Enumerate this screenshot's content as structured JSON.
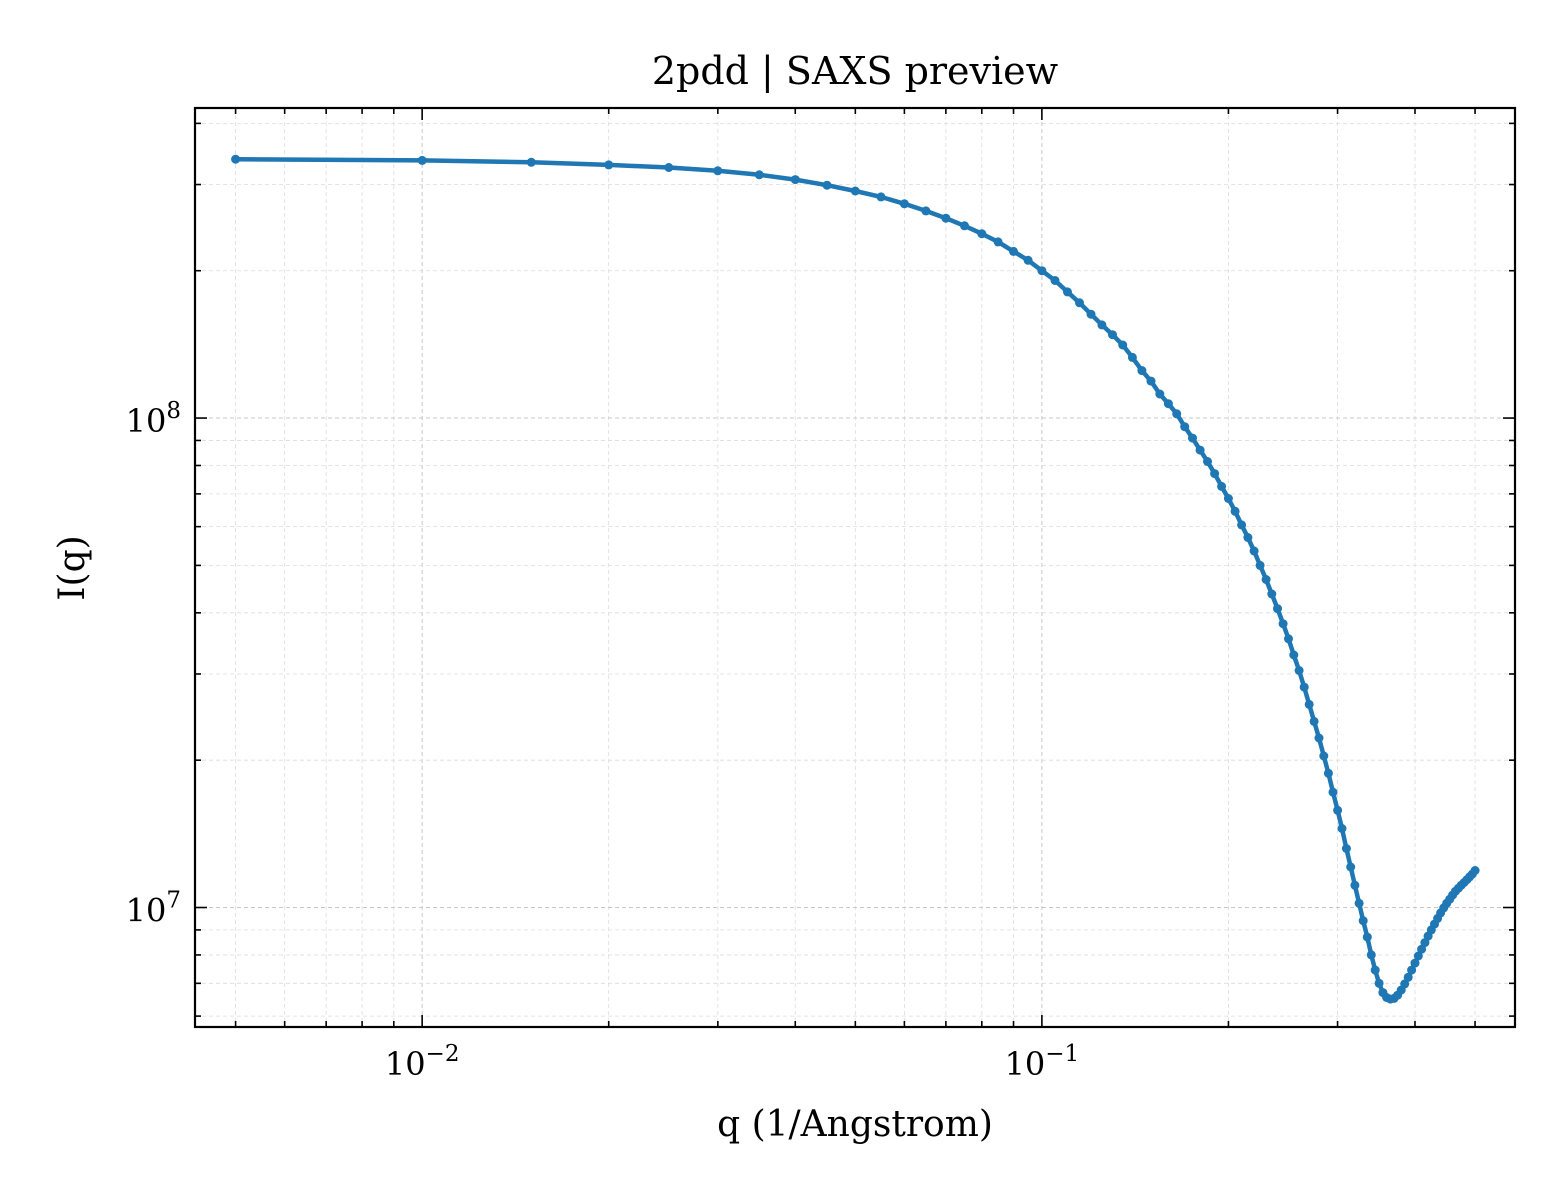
{
  "chart_data": {
    "type": "line",
    "title": "2pdd | SAXS preview",
    "xlabel": "q (1/Angstrom)",
    "ylabel": "I(q)",
    "xscale": "log",
    "yscale": "log",
    "xlim": [
      0.0043,
      0.58
    ],
    "ylim": [
      5700000.0,
      430000000.0
    ],
    "grid": true,
    "xticks": [
      {
        "value": 0.01,
        "base": "10",
        "exp": "−2"
      },
      {
        "value": 0.1,
        "base": "10",
        "exp": "−1"
      }
    ],
    "yticks": [
      {
        "value": 10000000.0,
        "base": "10",
        "exp": "7"
      },
      {
        "value": 100000000.0,
        "base": "10",
        "exp": "8"
      }
    ],
    "color": "#1f77b4",
    "series": [
      {
        "x": [
          0.005,
          0.01,
          0.015,
          0.02,
          0.025,
          0.03,
          0.035,
          0.04,
          0.045,
          0.05,
          0.055,
          0.06,
          0.065,
          0.07,
          0.075,
          0.08,
          0.085,
          0.09,
          0.095,
          0.1,
          0.105,
          0.11,
          0.115,
          0.12,
          0.125,
          0.13,
          0.135,
          0.14,
          0.145,
          0.15,
          0.155,
          0.16,
          0.165,
          0.17,
          0.175,
          0.18,
          0.185,
          0.19,
          0.195,
          0.2,
          0.205,
          0.21,
          0.215,
          0.22,
          0.225,
          0.23,
          0.235,
          0.24,
          0.245,
          0.25,
          0.255,
          0.26,
          0.265,
          0.27,
          0.275,
          0.28,
          0.285,
          0.29,
          0.295,
          0.3,
          0.305,
          0.31,
          0.315,
          0.32,
          0.325,
          0.33,
          0.335,
          0.34,
          0.345,
          0.35,
          0.355,
          0.36,
          0.365,
          0.37,
          0.375,
          0.38,
          0.385,
          0.39,
          0.395,
          0.4,
          0.405,
          0.41,
          0.415,
          0.42,
          0.425,
          0.43,
          0.435,
          0.44,
          0.445,
          0.45,
          0.455,
          0.46,
          0.465,
          0.47,
          0.475,
          0.48,
          0.485,
          0.49,
          0.495,
          0.5
        ],
        "y": [
          338000000.0,
          336000000.0,
          333000000.0,
          329000000.0,
          325000000.0,
          320000000.0,
          314000000.0,
          307000000.0,
          299000000.0,
          291000000.0,
          283000000.0,
          274000000.0,
          265000000.0,
          256000000.0,
          247000000.0,
          238000000.0,
          229000000.0,
          219000000.0,
          210000000.0,
          200000000.0,
          191000000.0,
          181000000.0,
          172000000.0,
          163000000.0,
          155000000.0,
          148000000.0,
          141000000.0,
          133000000.0,
          125000000.0,
          119000000.0,
          112000000.0,
          107000000.0,
          102000000.0,
          96000000.0,
          91000000.0,
          86000000.0,
          81500000.0,
          77000000.0,
          72500000.0,
          68500000.0,
          64500000.0,
          60500000.0,
          57000000.0,
          53500000.0,
          50000000.0,
          46800000.0,
          43700000.0,
          40800000.0,
          38000000.0,
          35400000.0,
          32800000.0,
          30500000.0,
          28200000.0,
          26000000.0,
          24000000.0,
          22200000.0,
          20400000.0,
          18800000.0,
          17200000.0,
          15800000.0,
          14500000.0,
          13200000.0,
          12100000.0,
          11100000.0,
          10200000.0,
          9400000.0,
          8700000.0,
          8000000.0,
          7450000.0,
          7000000.0,
          6700000.0,
          6550000.0,
          6500000.0,
          6520000.0,
          6620000.0,
          6780000.0,
          6980000.0,
          7200000.0,
          7450000.0,
          7700000.0,
          7960000.0,
          8220000.0,
          8480000.0,
          8740000.0,
          9000000.0,
          9250000.0,
          9500000.0,
          9750000.0,
          9980000.0,
          10200000.0,
          10400000.0,
          10600000.0,
          10800000.0,
          10950000.0,
          11100000.0,
          11250000.0,
          11400000.0,
          11550000.0,
          11700000.0,
          11900000.0
        ]
      }
    ]
  }
}
